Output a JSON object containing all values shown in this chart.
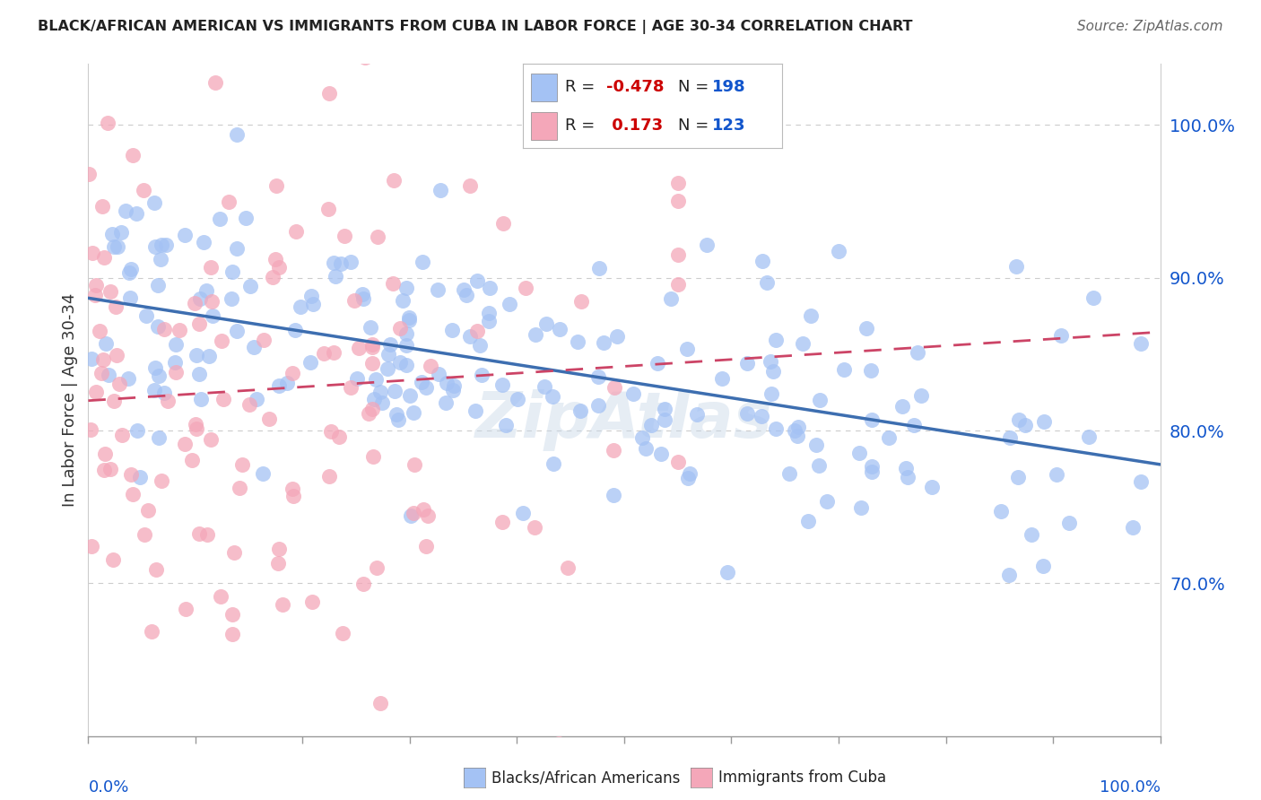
{
  "title": "BLACK/AFRICAN AMERICAN VS IMMIGRANTS FROM CUBA IN LABOR FORCE | AGE 30-34 CORRELATION CHART",
  "source": "Source: ZipAtlas.com",
  "ylabel": "In Labor Force | Age 30-34",
  "ytick_labels": [
    "70.0%",
    "80.0%",
    "90.0%",
    "100.0%"
  ],
  "ytick_values": [
    0.7,
    0.8,
    0.9,
    1.0
  ],
  "xlim": [
    0.0,
    1.0
  ],
  "ylim": [
    0.6,
    1.04
  ],
  "blue_color": "#a4c2f4",
  "pink_color": "#f4a7b9",
  "blue_r": "-0.478",
  "blue_n": "198",
  "pink_r": " 0.173",
  "pink_n": "123",
  "legend_label_blue": "Blacks/African Americans",
  "legend_label_pink": "Immigrants from Cuba",
  "r_color": "#cc0000",
  "n_color": "#1155cc",
  "blue_line_color": "#3d6eb0",
  "pink_line_color": "#cc4466",
  "blue_seed": 12,
  "pink_seed": 99,
  "background_color": "#ffffff",
  "grid_color": "#cccccc",
  "watermark": "ZipAtlas",
  "watermark_color": "#c8d8e8"
}
